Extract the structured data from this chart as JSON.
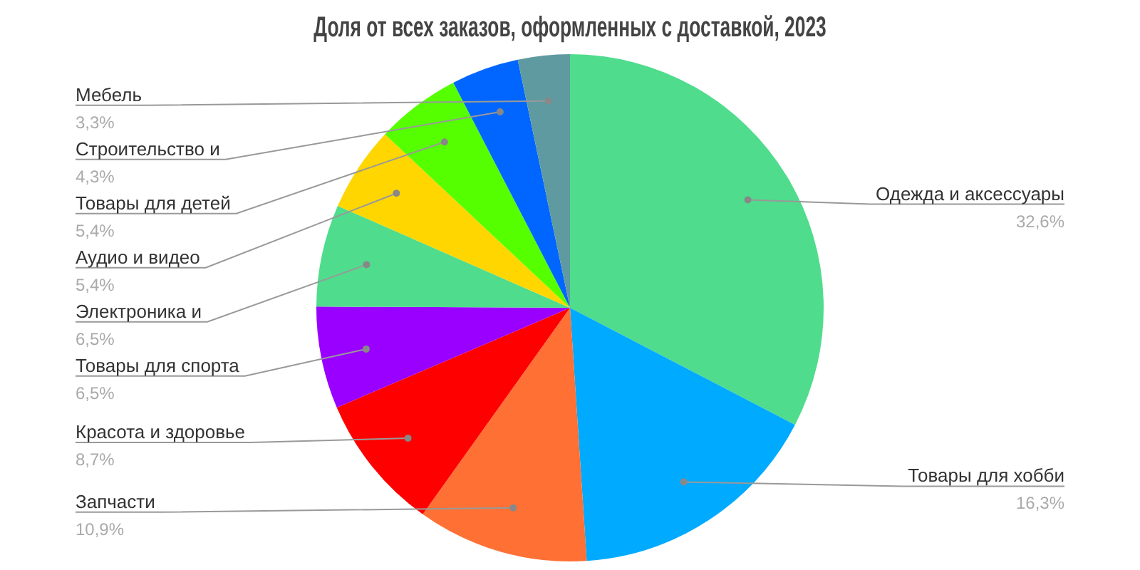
{
  "chart_data": {
    "type": "pie",
    "title": "Доля от всех заказов, оформленных с доставкой, 2023",
    "categories": [
      "Одежда и аксессуары",
      "Товары для хобби",
      "Запчасти",
      "Красота и здоровье",
      "Товары для спорта",
      "Электроника и",
      "Аудио и видео",
      "Товары для детей",
      "Строительство и",
      "Мебель"
    ],
    "values": [
      32.6,
      16.3,
      10.9,
      8.7,
      6.5,
      6.5,
      5.4,
      5.4,
      4.3,
      3.3
    ],
    "value_labels": [
      "32,6%",
      "16,3%",
      "10,9%",
      "8,7%",
      "6,5%",
      "6,5%",
      "5,4%",
      "5,4%",
      "4,3%",
      "3,3%"
    ],
    "colors": [
      "#4fdc8c",
      "#00aaff",
      "#ff7034",
      "#ff0000",
      "#9900ff",
      "#4fdc8c",
      "#ffd600",
      "#55ff00",
      "#0066ff",
      "#5f9aa0"
    ],
    "legend": false
  }
}
